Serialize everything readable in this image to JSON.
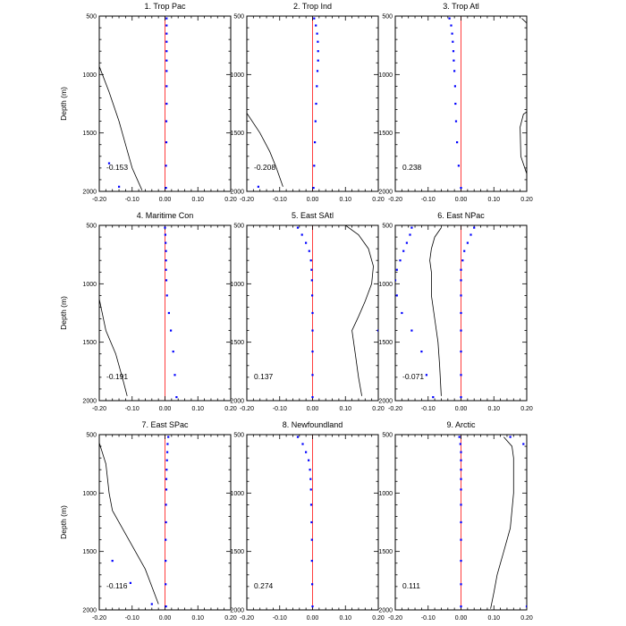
{
  "chart_data": [
    {
      "type": "line",
      "title": "1. Trop Pac",
      "ylabel": "Depth (m)",
      "xlim": [
        -0.2,
        0.2
      ],
      "ylim": [
        500,
        2000
      ],
      "xticks": [
        "-0.20",
        "-0.10",
        "0.00",
        "0.10",
        "0.20"
      ],
      "yticks": [
        "500",
        "1000",
        "1500",
        "2000"
      ],
      "correlation_label": "-0.153",
      "series": [
        {
          "name": "profile",
          "style": "black-line",
          "points": [
            [
              -0.2,
              930
            ],
            [
              -0.17,
              1150
            ],
            [
              -0.14,
              1400
            ],
            [
              -0.12,
              1600
            ],
            [
              -0.1,
              1800
            ],
            [
              -0.07,
              1990
            ]
          ]
        },
        {
          "name": "dots",
          "style": "blue-dots",
          "points": [
            [
              0.005,
              520
            ],
            [
              0.005,
              580
            ],
            [
              0.005,
              650
            ],
            [
              0.005,
              720
            ],
            [
              0.005,
              800
            ],
            [
              0.005,
              880
            ],
            [
              0.005,
              970
            ],
            [
              0.005,
              1100
            ],
            [
              0.005,
              1250
            ],
            [
              0.004,
              1400
            ],
            [
              0.004,
              1580
            ],
            [
              0.003,
              1780
            ],
            [
              0.003,
              1970
            ],
            [
              -0.17,
              1760
            ],
            [
              -0.14,
              1960
            ]
          ]
        }
      ]
    },
    {
      "type": "line",
      "title": "2. Trop Ind",
      "xlim": [
        -0.2,
        0.2
      ],
      "ylim": [
        500,
        2000
      ],
      "xticks": [
        "-0.20",
        "-0.10",
        "0.00",
        "0.10",
        "0.20"
      ],
      "yticks": [
        "500",
        "1000",
        "1500",
        "2000"
      ],
      "correlation_label": "-0.208",
      "series": [
        {
          "name": "profile",
          "style": "black-line",
          "points": [
            [
              -0.2,
              1330
            ],
            [
              -0.16,
              1500
            ],
            [
              -0.13,
              1660
            ],
            [
              -0.11,
              1800
            ],
            [
              -0.09,
              1960
            ]
          ]
        },
        {
          "name": "dots",
          "style": "blue-dots",
          "points": [
            [
              0.005,
              520
            ],
            [
              0.01,
              580
            ],
            [
              0.014,
              650
            ],
            [
              0.016,
              720
            ],
            [
              0.017,
              800
            ],
            [
              0.017,
              880
            ],
            [
              0.015,
              970
            ],
            [
              0.013,
              1100
            ],
            [
              0.011,
              1250
            ],
            [
              0.009,
              1400
            ],
            [
              0.007,
              1580
            ],
            [
              0.005,
              1780
            ],
            [
              0.003,
              1970
            ],
            [
              -0.165,
              1960
            ]
          ]
        }
      ]
    },
    {
      "type": "line",
      "title": "3. Trop Atl",
      "xlim": [
        -0.2,
        0.2
      ],
      "ylim": [
        500,
        2000
      ],
      "xticks": [
        "-0.20",
        "-0.10",
        "0.00",
        "0.10",
        "0.20"
      ],
      "yticks": [
        "500",
        "1000",
        "1500",
        "2000"
      ],
      "correlation_label": "0.238",
      "series": [
        {
          "name": "profile-top",
          "style": "black-line",
          "points": [
            [
              0.185,
              520
            ],
            [
              0.2,
              560
            ]
          ]
        },
        {
          "name": "profile-right",
          "style": "black-line",
          "points": [
            [
              0.2,
              1320
            ],
            [
              0.19,
              1340
            ],
            [
              0.18,
              1450
            ],
            [
              0.182,
              1700
            ],
            [
              0.2,
              1850
            ]
          ]
        },
        {
          "name": "dots",
          "style": "blue-dots",
          "points": [
            [
              -0.035,
              520
            ],
            [
              -0.03,
              580
            ],
            [
              -0.027,
              650
            ],
            [
              -0.025,
              720
            ],
            [
              -0.023,
              800
            ],
            [
              -0.022,
              880
            ],
            [
              -0.02,
              970
            ],
            [
              -0.018,
              1100
            ],
            [
              -0.017,
              1250
            ],
            [
              -0.015,
              1400
            ],
            [
              -0.012,
              1580
            ],
            [
              -0.007,
              1780
            ],
            [
              0.0,
              1970
            ]
          ]
        }
      ]
    },
    {
      "type": "line",
      "title": "4. Maritime Con",
      "ylabel": "Depth (m)",
      "xlim": [
        -0.2,
        0.2
      ],
      "ylim": [
        500,
        2000
      ],
      "xticks": [
        "-0.20",
        "-0.10",
        "0.00",
        "0.10",
        "0.20"
      ],
      "yticks": [
        "500",
        "1000",
        "1500",
        "2000"
      ],
      "correlation_label": "-0.191",
      "series": [
        {
          "name": "profile",
          "style": "black-line",
          "points": [
            [
              -0.2,
              1130
            ],
            [
              -0.18,
              1400
            ],
            [
              -0.15,
              1600
            ],
            [
              -0.13,
              1800
            ],
            [
              -0.115,
              1960
            ]
          ]
        },
        {
          "name": "dots",
          "style": "blue-dots",
          "points": [
            [
              0.0,
              520
            ],
            [
              0.001,
              580
            ],
            [
              0.002,
              650
            ],
            [
              0.003,
              720
            ],
            [
              0.003,
              800
            ],
            [
              0.003,
              880
            ],
            [
              0.004,
              970
            ],
            [
              0.006,
              1100
            ],
            [
              0.012,
              1250
            ],
            [
              0.018,
              1400
            ],
            [
              0.025,
              1580
            ],
            [
              0.03,
              1780
            ],
            [
              0.035,
              1970
            ]
          ]
        }
      ]
    },
    {
      "type": "line",
      "title": "5. East SAtl",
      "xlim": [
        -0.2,
        0.2
      ],
      "ylim": [
        500,
        2000
      ],
      "xticks": [
        "-0.20",
        "-0.10",
        "0.00",
        "0.10",
        "0.20"
      ],
      "yticks": [
        "500",
        "1000",
        "1500",
        "2000"
      ],
      "correlation_label": "0.137",
      "series": [
        {
          "name": "profile",
          "style": "black-line",
          "points": [
            [
              0.1,
              500
            ],
            [
              0.14,
              580
            ],
            [
              0.17,
              700
            ],
            [
              0.185,
              850
            ],
            [
              0.18,
              1000
            ],
            [
              0.16,
              1150
            ],
            [
              0.14,
              1280
            ],
            [
              0.12,
              1400
            ],
            [
              0.13,
              1600
            ],
            [
              0.14,
              1800
            ],
            [
              0.15,
              1960
            ]
          ]
        },
        {
          "name": "dots",
          "style": "blue-dots",
          "points": [
            [
              -0.045,
              520
            ],
            [
              -0.032,
              580
            ],
            [
              -0.02,
              650
            ],
            [
              -0.01,
              720
            ],
            [
              -0.005,
              800
            ],
            [
              -0.003,
              880
            ],
            [
              -0.002,
              970
            ],
            [
              -0.001,
              1100
            ],
            [
              0.0,
              1250
            ],
            [
              0.0,
              1400
            ],
            [
              0.0,
              1580
            ],
            [
              0.0,
              1780
            ],
            [
              0.0,
              1970
            ],
            [
              0.2,
              1400
            ]
          ]
        }
      ]
    },
    {
      "type": "line",
      "title": "6. East NPac",
      "xlim": [
        -0.2,
        0.2
      ],
      "ylim": [
        500,
        2000
      ],
      "xticks": [
        "-0.20",
        "-0.10",
        "0.00",
        "0.10",
        "0.20"
      ],
      "yticks": [
        "500",
        "1000",
        "1500",
        "2000"
      ],
      "correlation_label": "-0.071",
      "series": [
        {
          "name": "profile",
          "style": "black-line",
          "points": [
            [
              -0.06,
              520
            ],
            [
              -0.08,
              600
            ],
            [
              -0.09,
              700
            ],
            [
              -0.095,
              800
            ],
            [
              -0.09,
              900
            ],
            [
              -0.09,
              1100
            ],
            [
              -0.08,
              1300
            ],
            [
              -0.07,
              1500
            ],
            [
              -0.065,
              1700
            ],
            [
              -0.06,
              1960
            ]
          ]
        },
        {
          "name": "dots-left",
          "style": "blue-dots",
          "points": [
            [
              -0.15,
              520
            ],
            [
              -0.155,
              580
            ],
            [
              -0.165,
              650
            ],
            [
              -0.175,
              720
            ],
            [
              -0.185,
              800
            ],
            [
              -0.195,
              880
            ],
            [
              -0.2,
              970
            ],
            [
              -0.195,
              1100
            ],
            [
              -0.18,
              1250
            ],
            [
              -0.15,
              1400
            ],
            [
              -0.12,
              1580
            ],
            [
              -0.105,
              1780
            ],
            [
              -0.085,
              1970
            ]
          ]
        },
        {
          "name": "dots-right",
          "style": "blue-dots",
          "points": [
            [
              0.04,
              520
            ],
            [
              0.03,
              580
            ],
            [
              0.02,
              650
            ],
            [
              0.01,
              720
            ],
            [
              0.005,
              800
            ],
            [
              0.0,
              880
            ],
            [
              0.0,
              970
            ],
            [
              0.0,
              1100
            ],
            [
              0.0,
              1250
            ],
            [
              0.0,
              1400
            ],
            [
              0.0,
              1580
            ],
            [
              0.0,
              1780
            ],
            [
              0.0,
              1970
            ]
          ]
        }
      ]
    },
    {
      "type": "line",
      "title": "7. East SPac",
      "ylabel": "Depth (m)",
      "xlim": [
        -0.2,
        0.2
      ],
      "ylim": [
        500,
        2000
      ],
      "xticks": [
        "-0.20",
        "-0.10",
        "0.00",
        "0.10",
        "0.20"
      ],
      "yticks": [
        "500",
        "1000",
        "1500",
        "2000"
      ],
      "correlation_label": "-0.116",
      "series": [
        {
          "name": "profile",
          "style": "black-line",
          "points": [
            [
              -0.2,
              570
            ],
            [
              -0.18,
              750
            ],
            [
              -0.17,
              1000
            ],
            [
              -0.16,
              1150
            ],
            [
              -0.12,
              1350
            ],
            [
              -0.09,
              1500
            ],
            [
              -0.06,
              1650
            ],
            [
              -0.04,
              1800
            ],
            [
              -0.02,
              1950
            ]
          ]
        },
        {
          "name": "dots",
          "style": "blue-dots",
          "points": [
            [
              0.01,
              520
            ],
            [
              0.008,
              580
            ],
            [
              0.007,
              650
            ],
            [
              0.006,
              720
            ],
            [
              0.005,
              800
            ],
            [
              0.004,
              880
            ],
            [
              0.004,
              970
            ],
            [
              0.003,
              1100
            ],
            [
              0.003,
              1250
            ],
            [
              0.002,
              1400
            ],
            [
              0.002,
              1580
            ],
            [
              0.002,
              1780
            ],
            [
              0.003,
              1970
            ],
            [
              -0.16,
              1580
            ],
            [
              -0.105,
              1770
            ],
            [
              -0.04,
              1950
            ]
          ]
        }
      ]
    },
    {
      "type": "line",
      "title": "8. Newfoundland",
      "xlim": [
        -0.2,
        0.2
      ],
      "ylim": [
        500,
        2000
      ],
      "xticks": [
        "-0.20",
        "-0.10",
        "0.00",
        "0.10",
        "0.20"
      ],
      "yticks": [
        "500",
        "1000",
        "1500",
        "2000"
      ],
      "correlation_label": "0.274",
      "series": [
        {
          "name": "dots",
          "style": "blue-dots",
          "points": [
            [
              -0.045,
              520
            ],
            [
              -0.03,
              580
            ],
            [
              -0.02,
              650
            ],
            [
              -0.012,
              720
            ],
            [
              -0.008,
              800
            ],
            [
              -0.006,
              880
            ],
            [
              -0.005,
              970
            ],
            [
              -0.004,
              1100
            ],
            [
              -0.003,
              1250
            ],
            [
              -0.002,
              1400
            ],
            [
              -0.002,
              1580
            ],
            [
              -0.001,
              1780
            ],
            [
              0.0,
              1970
            ]
          ]
        }
      ]
    },
    {
      "type": "line",
      "title": "9. Arctic",
      "xlim": [
        -0.2,
        0.2
      ],
      "ylim": [
        500,
        2000
      ],
      "xticks": [
        "-0.20",
        "-0.10",
        "0.00",
        "0.10",
        "0.20"
      ],
      "yticks": [
        "500",
        "1000",
        "1500",
        "2000"
      ],
      "correlation_label": "0.111",
      "series": [
        {
          "name": "profile",
          "style": "black-line",
          "points": [
            [
              0.13,
              520
            ],
            [
              0.155,
              600
            ],
            [
              0.16,
              700
            ],
            [
              0.16,
              1000
            ],
            [
              0.15,
              1300
            ],
            [
              0.13,
              1500
            ],
            [
              0.11,
              1700
            ],
            [
              0.1,
              1850
            ],
            [
              0.09,
              1990
            ]
          ]
        },
        {
          "name": "dots",
          "style": "blue-dots",
          "points": [
            [
              -0.005,
              520
            ],
            [
              -0.002,
              580
            ],
            [
              0.0,
              650
            ],
            [
              0.0,
              720
            ],
            [
              0.0,
              800
            ],
            [
              0.0,
              880
            ],
            [
              0.0,
              970
            ],
            [
              0.0,
              1100
            ],
            [
              0.0,
              1250
            ],
            [
              0.0,
              1400
            ],
            [
              0.0,
              1580
            ],
            [
              0.0,
              1780
            ],
            [
              0.0,
              1970
            ],
            [
              0.15,
              520
            ],
            [
              0.19,
              580
            ],
            [
              0.2,
              1970
            ]
          ]
        }
      ]
    }
  ]
}
